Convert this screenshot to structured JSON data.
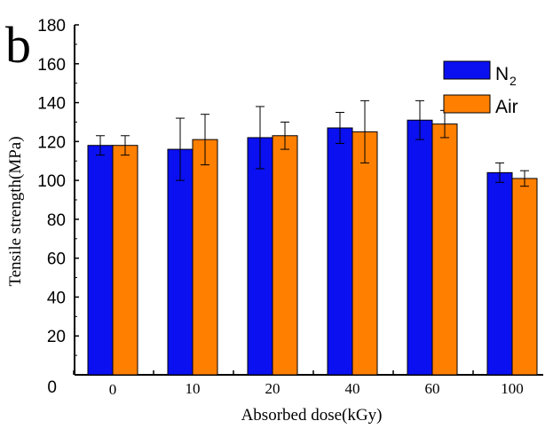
{
  "chart_data": {
    "type": "bar",
    "panel_label": "b",
    "xlabel": "Absorbed dose(kGy)",
    "ylabel": "Tensile strength(MPa)",
    "categories": [
      "0",
      "10",
      "20",
      "40",
      "60",
      "100"
    ],
    "ylim": [
      0,
      180
    ],
    "yticks": [
      "0",
      "20",
      "40",
      "60",
      "80",
      "100",
      "120",
      "140",
      "160",
      "180"
    ],
    "grid": false,
    "legend_position": "top-right",
    "series": [
      {
        "name": "N2",
        "name_main": "N",
        "name_sub": "2",
        "color": "#0a10f0",
        "values": [
          118,
          116,
          122,
          127,
          131,
          104
        ],
        "errors": [
          5,
          16,
          16,
          8,
          10,
          5
        ]
      },
      {
        "name": "Air",
        "color": "#ff7f00",
        "values": [
          118,
          121,
          123,
          125,
          129,
          101
        ],
        "errors": [
          5,
          13,
          7,
          16,
          7,
          4
        ]
      }
    ]
  }
}
